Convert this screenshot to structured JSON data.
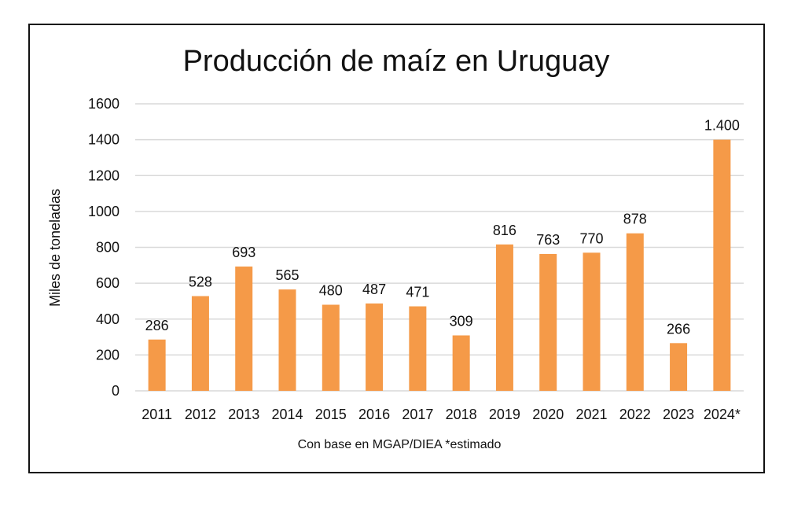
{
  "chart_data": {
    "type": "bar",
    "title": "Producción de maíz en Uruguay",
    "xlabel": "Con base en MGAP/DIEA *estimado",
    "ylabel": "Miles de toneladas",
    "ylim": [
      0,
      1600
    ],
    "yticks": [
      0,
      200,
      400,
      600,
      800,
      1000,
      1200,
      1400,
      1600
    ],
    "ytick_labels": [
      "0",
      "200",
      "400",
      "600",
      "800",
      "1000",
      "1200",
      "1400",
      "1600"
    ],
    "grid": true,
    "categories": [
      "2011",
      "2012",
      "2013",
      "2014",
      "2015",
      "2016",
      "2017",
      "2018",
      "2019",
      "2020",
      "2021",
      "2022",
      "2023",
      "2024*"
    ],
    "values": [
      286,
      528,
      693,
      565,
      480,
      487,
      471,
      309,
      816,
      763,
      770,
      878,
      266,
      1400
    ],
    "data_labels": [
      "286",
      "528",
      "693",
      "565",
      "480",
      "487",
      "471",
      "309",
      "816",
      "763",
      "770",
      "878",
      "266",
      "1.400"
    ],
    "colors": {
      "bar": "#F59A48",
      "grid": "#D9D9D9",
      "text": "#111111"
    }
  }
}
